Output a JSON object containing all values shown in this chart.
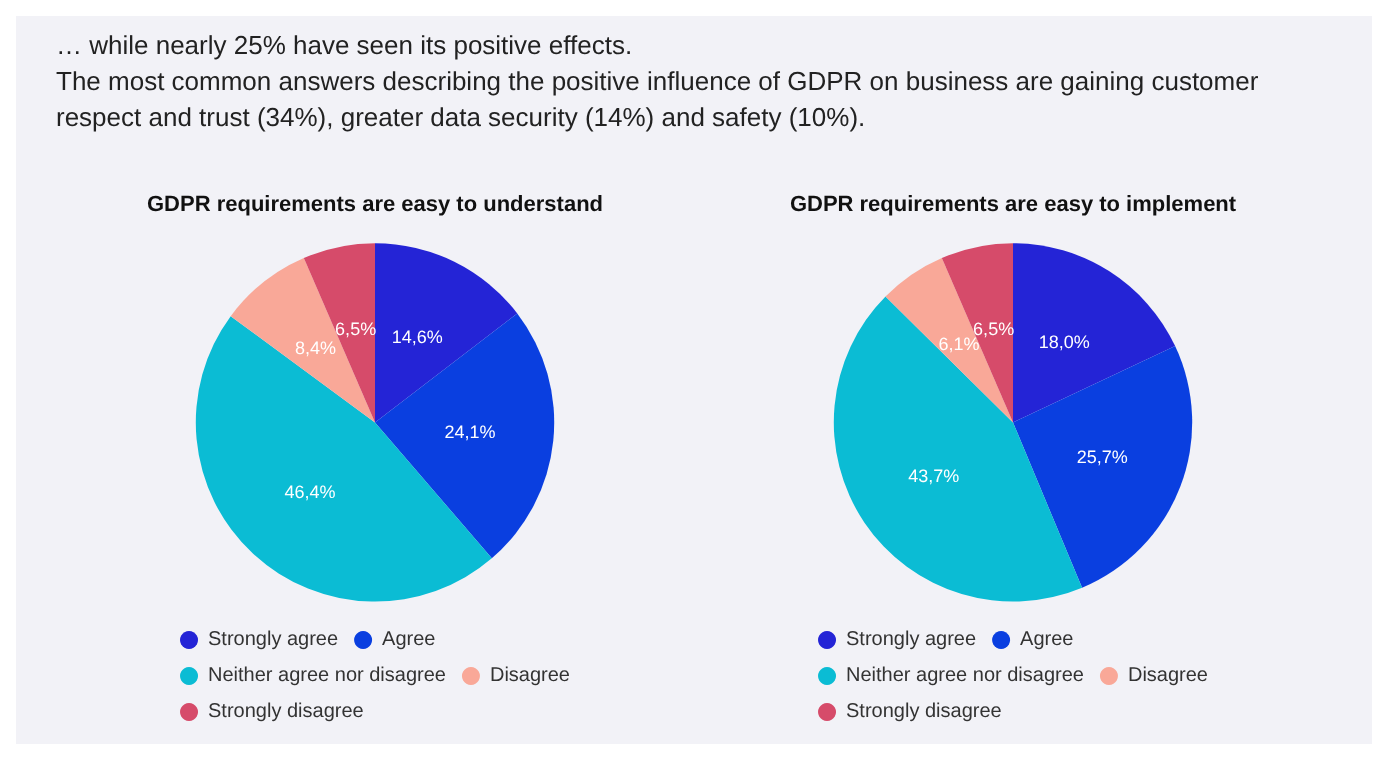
{
  "chart_data": [
    {
      "type": "pie",
      "title": "GDPR requirements are easy to understand",
      "annotations": [
        "… while nearly 25% have seen its positive effects.",
        "The most common answers describing the positive influence of GDPR on business are gaining customer respect and trust (34%), greater data security (14%) and safety (10%)."
      ],
      "categories": [
        "Strongly agree",
        "Agree",
        "Neither agree nor disagree",
        "Disagree",
        "Strongly disagree"
      ],
      "values": [
        14.6,
        24.1,
        46.4,
        8.4,
        6.5
      ],
      "value_labels": [
        "14,6%",
        "24,1%",
        "46,4%",
        "8,4%",
        "6,5%"
      ],
      "colors": [
        "#2424d6",
        "#0a3fe0",
        "#0bbcd4",
        "#f9a898",
        "#d64b6a"
      ],
      "legend": "bottom"
    },
    {
      "type": "pie",
      "title": "GDPR requirements are easy to implement",
      "categories": [
        "Strongly agree",
        "Agree",
        "Neither agree nor disagree",
        "Disagree",
        "Strongly disagree"
      ],
      "values": [
        18.0,
        25.7,
        43.7,
        6.1,
        6.5
      ],
      "value_labels": [
        "18,0%",
        "25,7%",
        "43,7%",
        "6,1%",
        "6,5%"
      ],
      "colors": [
        "#2424d6",
        "#0a3fe0",
        "#0bbcd4",
        "#f9a898",
        "#d64b6a"
      ],
      "legend": "bottom"
    }
  ]
}
